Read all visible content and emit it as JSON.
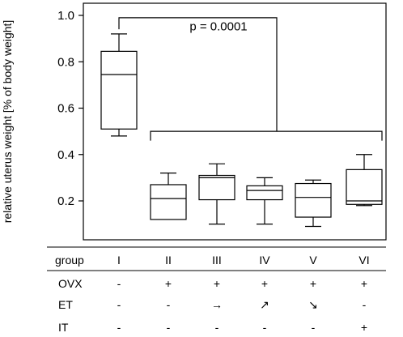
{
  "chart_data": {
    "type": "box",
    "ylabel": "relative uterus weight [% of body weight]",
    "ylim": [
      0.0,
      1.0
    ],
    "yticks": [
      0.2,
      0.4,
      0.6,
      0.8,
      1.0
    ],
    "ytick_labels": [
      "0.2",
      "0.4",
      "0.6",
      "0.8",
      "1.0"
    ],
    "categories": [
      "I",
      "II",
      "III",
      "IV",
      "V",
      "VI"
    ],
    "boxes": [
      {
        "group": "I",
        "min": 0.48,
        "q1": 0.51,
        "median": 0.745,
        "q3": 0.845,
        "max": 0.92
      },
      {
        "group": "II",
        "min": 0.12,
        "q1": 0.12,
        "median": 0.21,
        "q3": 0.27,
        "max": 0.32
      },
      {
        "group": "III",
        "min": 0.1,
        "q1": 0.205,
        "median": 0.3,
        "q3": 0.31,
        "max": 0.36
      },
      {
        "group": "IV",
        "min": 0.1,
        "q1": 0.205,
        "median": 0.245,
        "q3": 0.265,
        "max": 0.3
      },
      {
        "group": "V",
        "min": 0.09,
        "q1": 0.13,
        "median": 0.215,
        "q3": 0.275,
        "max": 0.29
      },
      {
        "group": "VI",
        "min": 0.18,
        "q1": 0.185,
        "median": 0.2,
        "q3": 0.335,
        "max": 0.4
      }
    ],
    "annotation": "p = 0.0001",
    "comparison": {
      "from": "I",
      "to": [
        "II",
        "III",
        "IV",
        "V",
        "VI"
      ]
    }
  },
  "table": {
    "header_label": "group",
    "groups": [
      "I",
      "II",
      "III",
      "IV",
      "V",
      "VI"
    ],
    "rows": [
      {
        "label": "OVX",
        "values": [
          "-",
          "+",
          "+",
          "+",
          "+",
          "+"
        ]
      },
      {
        "label": "ET",
        "values": [
          "-",
          "-",
          "→",
          "↗",
          "↘",
          "-"
        ]
      },
      {
        "label": "IT",
        "values": [
          "-",
          "-",
          "-",
          "-",
          "-",
          "+"
        ]
      }
    ]
  }
}
